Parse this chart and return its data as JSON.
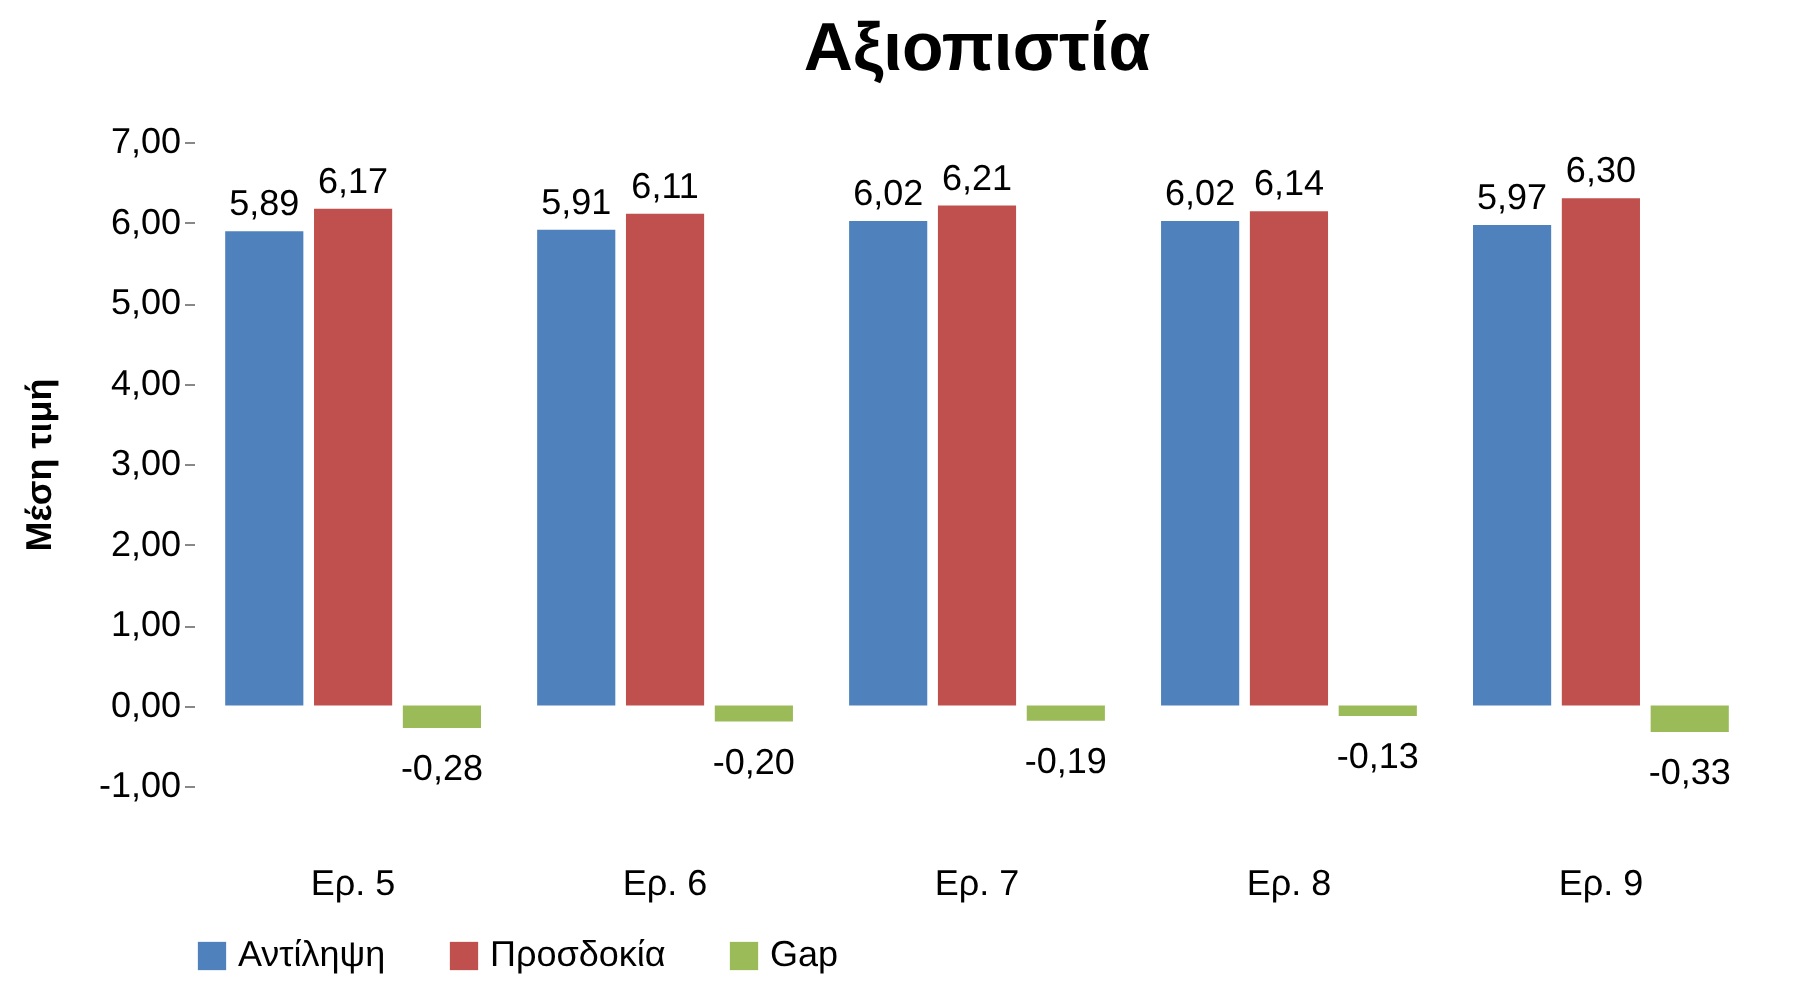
{
  "chart_data": {
    "type": "bar",
    "title": "Αξιοπιστία",
    "ylabel": "Μέση τιμή",
    "categories": [
      "Ερ. 5",
      "Ερ. 6",
      "Ερ. 7",
      "Ερ. 8",
      "Ερ. 9"
    ],
    "series": [
      {
        "name": "Αντίληψη",
        "color": "#4f81bd",
        "values": [
          5.89,
          5.91,
          6.02,
          6.02,
          5.97
        ],
        "value_labels": [
          "5,89",
          "5,91",
          "6,02",
          "6,02",
          "5,97"
        ]
      },
      {
        "name": "Προσδοκία",
        "color": "#c0504d",
        "values": [
          6.17,
          6.11,
          6.21,
          6.14,
          6.3
        ],
        "value_labels": [
          "6,17",
          "6,11",
          "6,21",
          "6,14",
          "6,30"
        ]
      },
      {
        "name": "Gap",
        "color": "#9bbb59",
        "values": [
          -0.28,
          -0.2,
          -0.19,
          -0.13,
          -0.33
        ],
        "value_labels": [
          "-0,28",
          "-0,20",
          "-0,19",
          "-0,13",
          "-0,33"
        ]
      }
    ],
    "ylim": [
      -1,
      7
    ],
    "yticks": [
      {
        "value": -1,
        "label": "-1,00"
      },
      {
        "value": 0,
        "label": "0,00"
      },
      {
        "value": 1,
        "label": "1,00"
      },
      {
        "value": 2,
        "label": "2,00"
      },
      {
        "value": 3,
        "label": "3,00"
      },
      {
        "value": 4,
        "label": "4,00"
      },
      {
        "value": 5,
        "label": "5,00"
      },
      {
        "value": 6,
        "label": "6,00"
      },
      {
        "value": 7,
        "label": "7,00"
      }
    ],
    "grid": false,
    "legend": "bottom"
  }
}
